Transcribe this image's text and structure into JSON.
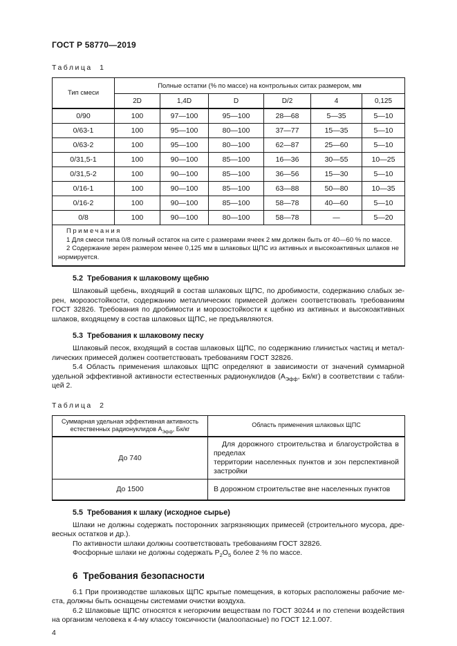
{
  "page": {
    "doc_code": "ГОСТ Р 58770—2019",
    "page_number": "4"
  },
  "table1": {
    "caption": "Таблица 1",
    "header": {
      "col_type": "Тип смеси",
      "span_title": "Полные остатки (% по массе) на контрольных ситах размером, мм",
      "sizes": [
        "2D",
        "1,4D",
        "D",
        "D/2",
        "4",
        "0,125"
      ]
    },
    "rows": [
      [
        "0/90",
        "100",
        "97—100",
        "95—100",
        "28—68",
        "5—35",
        "5—10"
      ],
      [
        "0/63-1",
        "100",
        "95—100",
        "80—100",
        "37—77",
        "15—35",
        "5—10"
      ],
      [
        "0/63-2",
        "100",
        "95—100",
        "80—100",
        "62—87",
        "25—60",
        "5—10"
      ],
      [
        "0/31,5-1",
        "100",
        "90—100",
        "85—100",
        "16—36",
        "30—55",
        "10—25"
      ],
      [
        "0/31,5-2",
        "100",
        "90—100",
        "85—100",
        "36—56",
        "15—30",
        "5—10"
      ],
      [
        "0/16-1",
        "100",
        "90—100",
        "85—100",
        "63—88",
        "50—80",
        "10—35"
      ],
      [
        "0/16-2",
        "100",
        "90—100",
        "85—100",
        "58—78",
        "40—60",
        "5—10"
      ],
      [
        "0/8",
        "100",
        "90—100",
        "80—100",
        "58—78",
        "—",
        "5—20"
      ]
    ],
    "notes": {
      "title": "Примечания",
      "note1_lines": [
        "1 Для смеси типа 0/8 полный остаток на сите с размерами ячеек 2 мм должен быть от 40—60 % по массе."
      ],
      "note2_lines": [
        "2 Содержание зерен размером менее 0,125 мм в шлаковых ЩПС из активных и высокоактивных шлаков не",
        "нормируется."
      ]
    }
  },
  "sections": {
    "s52": {
      "heading": "5.2  Требования к шлаковому щебню",
      "p1": [
        "Шлаковый щебень, входящий в состав шлаковых ЩПС, по дробимости, содержанию слабых зе-",
        "рен, морозостойкости, содержанию металлических примесей должен соответствовать требованиям",
        "ГОСТ 32826. Требования по дробимости и морозостойкости к щебню из активных и высокоактивных",
        "шлаков, входящему в состав шлаковых ЩПС, не предъявляются."
      ]
    },
    "s53": {
      "heading": "5.3  Требования к шлаковому песку",
      "p1": [
        "Шлаковый песок, входящий в состав шлаковых ЩПС, по содержанию глинистых частиц и метал-",
        "лических примесей должен соответствовать требованиям ГОСТ 32826."
      ],
      "p2": [
        "5.4 Область применения шлаковых ЩПС определяют в зависимости от значений суммарной",
        [
          {
            "t": "удельной эффективной активности естественных радионуклидов (А"
          },
          {
            "sub": "Эфф"
          },
          {
            "t": ", Бк/кг) в соответствии с табли-"
          }
        ],
        "цей 2."
      ]
    },
    "table2": {
      "caption": "Таблица 2",
      "header_col1": [
        {
          "t": "Суммарная удельная эффективная активность естественных радионуклидов А"
        },
        {
          "sub": "Эфф"
        },
        {
          "t": ", Бк/кг"
        }
      ],
      "header_col2": "Область применения шлаковых ЩПС",
      "rows": [
        {
          "col1": "До 740",
          "col2_lines": [
            "Для дорожного строительства и благоустройства в пределах",
            "территории населенных пунктов и зон перспективной застройки"
          ]
        },
        {
          "col1": "До 1500",
          "col2": "В дорожном строительстве вне населенных пунктов"
        }
      ]
    },
    "s55": {
      "heading": "5.5  Требования к шлаку (исходное сырье)",
      "p1": [
        "Шлаки не должны содержать посторонних загрязняющих примесей (строительного мусора, дре-",
        "весных остатков и др.)."
      ],
      "p2": [
        "По активности шлаки должны соответствовать требованиям ГОСТ 32826."
      ],
      "p3": [
        [
          {
            "t": "Фосфорные шлаки не должны содержать Р"
          },
          {
            "sub": "2"
          },
          {
            "t": "О"
          },
          {
            "sub": "5"
          },
          {
            "t": " более 2 % по массе."
          }
        ]
      ]
    },
    "s6": {
      "heading": "6  Требования безопасности",
      "p1": [
        "6.1 При производстве шлаковых ЩПС крытые помещения, в которых расположены рабочие ме-",
        "ста, должны быть оснащены системами очистки воздуха."
      ],
      "p2": [
        "6.2 Шлаковые ЩПС относятся к негорючим веществам по ГОСТ 30244 и по степени воздействия",
        "на организм человека к 4-му классу токсичности (малоопасные) по ГОСТ 12.1.007."
      ]
    }
  }
}
